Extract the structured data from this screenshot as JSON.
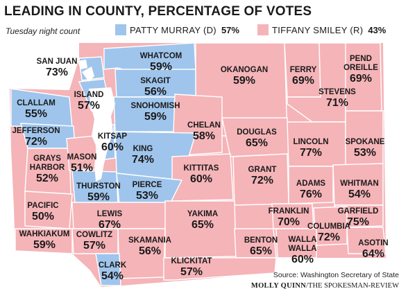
{
  "title": "LEADING IN COUNTY, PERCENTAGE OF VOTES",
  "subtitle": "Tuesday night count",
  "legend": [
    {
      "name": "PATTY MURRAY (D)",
      "pct": "57%",
      "color": "#9fc5ec"
    },
    {
      "name": "TIFFANY SMILEY (R)",
      "pct": "43%",
      "color": "#f5b4b8"
    }
  ],
  "colors": {
    "dem": "#9fc5ec",
    "rep": "#f5b4b8",
    "border": "#ffffff"
  },
  "counties": [
    {
      "name": "SAN JUAN",
      "pct": "73%",
      "party": "dem"
    },
    {
      "name": "WHATCOM",
      "pct": "59%",
      "party": "dem"
    },
    {
      "name": "OKANOGAN",
      "pct": "59%",
      "party": "rep"
    },
    {
      "name": "FERRY",
      "pct": "69%",
      "party": "rep"
    },
    {
      "name": "PEND OREILLE",
      "pct": "69%",
      "party": "rep"
    },
    {
      "name": "SKAGIT",
      "pct": "56%",
      "party": "dem"
    },
    {
      "name": "ISLAND",
      "pct": "57%",
      "party": "dem"
    },
    {
      "name": "STEVENS",
      "pct": "71%",
      "party": "rep"
    },
    {
      "name": "CLALLAM",
      "pct": "55%",
      "party": "dem"
    },
    {
      "name": "SNOHOMISH",
      "pct": "59%",
      "party": "dem"
    },
    {
      "name": "CHELAN",
      "pct": "58%",
      "party": "rep"
    },
    {
      "name": "DOUGLAS",
      "pct": "65%",
      "party": "rep"
    },
    {
      "name": "JEFFERSON",
      "pct": "72%",
      "party": "dem"
    },
    {
      "name": "KITSAP",
      "pct": "60%",
      "party": "dem"
    },
    {
      "name": "LINCOLN",
      "pct": "77%",
      "party": "rep"
    },
    {
      "name": "SPOKANE",
      "pct": "53%",
      "party": "rep"
    },
    {
      "name": "GRAYS HARBOR",
      "pct": "52%",
      "party": "rep"
    },
    {
      "name": "MASON",
      "pct": "51%",
      "party": "rep"
    },
    {
      "name": "KING",
      "pct": "74%",
      "party": "dem"
    },
    {
      "name": "KITTITAS",
      "pct": "60%",
      "party": "rep"
    },
    {
      "name": "GRANT",
      "pct": "72%",
      "party": "rep"
    },
    {
      "name": "ADAMS",
      "pct": "76%",
      "party": "rep"
    },
    {
      "name": "WHITMAN",
      "pct": "54%",
      "party": "rep"
    },
    {
      "name": "THURSTON",
      "pct": "59%",
      "party": "dem"
    },
    {
      "name": "PIERCE",
      "pct": "53%",
      "party": "dem"
    },
    {
      "name": "PACIFIC",
      "pct": "50%",
      "party": "rep"
    },
    {
      "name": "LEWIS",
      "pct": "67%",
      "party": "rep"
    },
    {
      "name": "YAKIMA",
      "pct": "65%",
      "party": "rep"
    },
    {
      "name": "FRANKLIN",
      "pct": "70%",
      "party": "rep"
    },
    {
      "name": "GARFIELD",
      "pct": "75%",
      "party": "rep"
    },
    {
      "name": "COLUMBIA",
      "pct": "72%",
      "party": "rep"
    },
    {
      "name": "WAHKIAKUM",
      "pct": "59%",
      "party": "rep"
    },
    {
      "name": "COWLITZ",
      "pct": "57%",
      "party": "rep"
    },
    {
      "name": "SKAMANIA",
      "pct": "56%",
      "party": "rep"
    },
    {
      "name": "BENTON",
      "pct": "65%",
      "party": "rep"
    },
    {
      "name": "WALLA WALLA",
      "pct": "60%",
      "party": "rep"
    },
    {
      "name": "ASOTIN",
      "pct": "64%",
      "party": "rep"
    },
    {
      "name": "CLARK",
      "pct": "54%",
      "party": "dem"
    },
    {
      "name": "KLICKITAT",
      "pct": "57%",
      "party": "rep"
    }
  ],
  "source": "Source: Washington Secretary of State",
  "credit": {
    "name": "MOLLY QUINN",
    "org": "/THE SPOKESMAN-REVIEW"
  }
}
